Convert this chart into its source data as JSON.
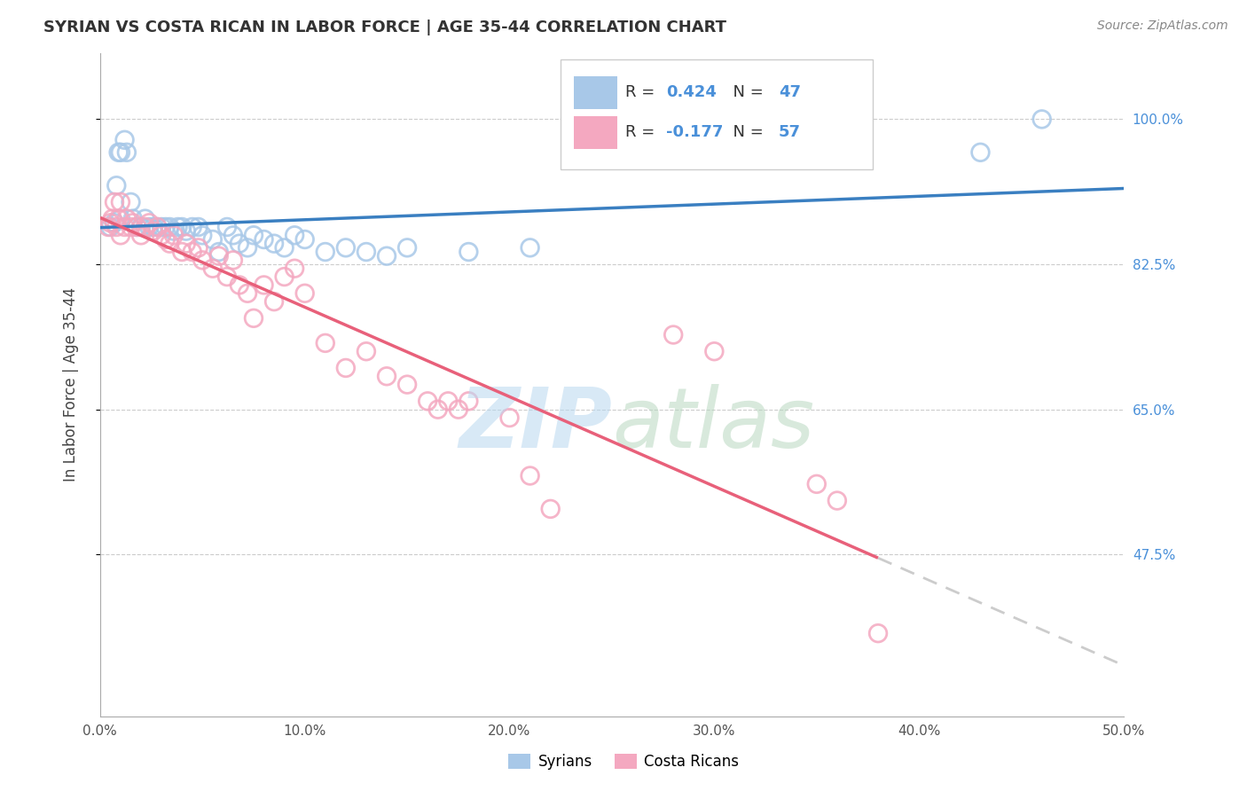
{
  "title": "SYRIAN VS COSTA RICAN IN LABOR FORCE | AGE 35-44 CORRELATION CHART",
  "source_text": "Source: ZipAtlas.com",
  "ylabel": "In Labor Force | Age 35-44",
  "xmin": 0.0,
  "xmax": 0.5,
  "ymin": 0.28,
  "ymax": 1.08,
  "yticks": [
    0.475,
    0.65,
    0.825,
    1.0
  ],
  "ytick_labels": [
    "47.5%",
    "65.0%",
    "82.5%",
    "100.0%"
  ],
  "xticks": [
    0.0,
    0.1,
    0.2,
    0.3,
    0.4,
    0.5
  ],
  "xtick_labels": [
    "0.0%",
    "10.0%",
    "20.0%",
    "30.0%",
    "40.0%",
    "50.0%"
  ],
  "blue_R": 0.424,
  "blue_N": 47,
  "pink_R": -0.177,
  "pink_N": 57,
  "blue_color": "#a8c8e8",
  "pink_color": "#f4a8c0",
  "blue_line_color": "#3a7fc1",
  "pink_line_color": "#e8607a",
  "legend_label_blue": "Syrians",
  "legend_label_pink": "Costa Ricans",
  "blue_x": [
    0.005,
    0.007,
    0.008,
    0.009,
    0.01,
    0.01,
    0.012,
    0.013,
    0.015,
    0.016,
    0.018,
    0.02,
    0.022,
    0.024,
    0.026,
    0.028,
    0.03,
    0.032,
    0.034,
    0.036,
    0.038,
    0.04,
    0.042,
    0.045,
    0.048,
    0.05,
    0.055,
    0.058,
    0.062,
    0.065,
    0.068,
    0.072,
    0.075,
    0.08,
    0.085,
    0.09,
    0.095,
    0.1,
    0.11,
    0.12,
    0.13,
    0.14,
    0.15,
    0.18,
    0.21,
    0.43,
    0.46
  ],
  "blue_y": [
    0.87,
    0.875,
    0.92,
    0.96,
    0.88,
    0.96,
    0.975,
    0.96,
    0.9,
    0.88,
    0.87,
    0.87,
    0.88,
    0.87,
    0.87,
    0.87,
    0.87,
    0.87,
    0.87,
    0.865,
    0.87,
    0.87,
    0.865,
    0.87,
    0.87,
    0.86,
    0.855,
    0.84,
    0.87,
    0.86,
    0.85,
    0.845,
    0.86,
    0.855,
    0.85,
    0.845,
    0.86,
    0.855,
    0.84,
    0.845,
    0.84,
    0.835,
    0.845,
    0.84,
    0.845,
    0.96,
    1.0
  ],
  "pink_x": [
    0.004,
    0.005,
    0.006,
    0.007,
    0.008,
    0.009,
    0.01,
    0.01,
    0.012,
    0.013,
    0.015,
    0.016,
    0.018,
    0.02,
    0.022,
    0.024,
    0.026,
    0.028,
    0.03,
    0.032,
    0.034,
    0.036,
    0.04,
    0.042,
    0.045,
    0.048,
    0.05,
    0.055,
    0.058,
    0.062,
    0.065,
    0.068,
    0.072,
    0.075,
    0.08,
    0.085,
    0.09,
    0.095,
    0.1,
    0.11,
    0.12,
    0.13,
    0.14,
    0.15,
    0.16,
    0.165,
    0.17,
    0.175,
    0.18,
    0.2,
    0.21,
    0.22,
    0.28,
    0.3,
    0.35,
    0.36,
    0.38
  ],
  "pink_y": [
    0.87,
    0.875,
    0.88,
    0.9,
    0.87,
    0.88,
    0.86,
    0.9,
    0.87,
    0.88,
    0.87,
    0.875,
    0.87,
    0.86,
    0.87,
    0.875,
    0.865,
    0.87,
    0.86,
    0.855,
    0.85,
    0.86,
    0.84,
    0.85,
    0.84,
    0.845,
    0.83,
    0.82,
    0.835,
    0.81,
    0.83,
    0.8,
    0.79,
    0.76,
    0.8,
    0.78,
    0.81,
    0.82,
    0.79,
    0.73,
    0.7,
    0.72,
    0.69,
    0.68,
    0.66,
    0.65,
    0.66,
    0.65,
    0.66,
    0.64,
    0.57,
    0.53,
    0.74,
    0.72,
    0.56,
    0.54,
    0.38
  ]
}
